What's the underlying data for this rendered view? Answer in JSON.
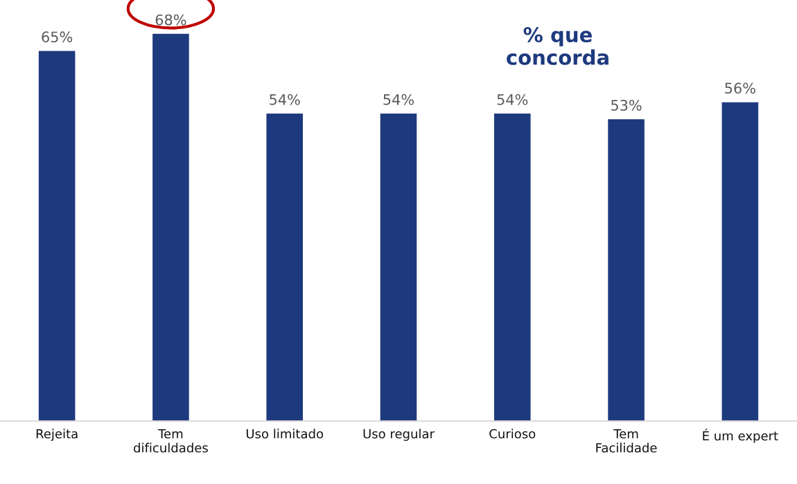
{
  "chart_data": {
    "type": "bar",
    "title": "% que\nconcorda",
    "categories": [
      "Rejeita",
      "Tem\ndificuldades",
      "Uso limitado",
      "Uso regular",
      "Curioso",
      "Tem\nFacilidade",
      "É um expert"
    ],
    "values": [
      65,
      68,
      54,
      54,
      54,
      53,
      56
    ],
    "color": "#1e3a7e",
    "value_labels": [
      "65%",
      "68%",
      "54%",
      "54%",
      "54%",
      "53%",
      "56%"
    ],
    "grid": false,
    "legend": false
  }
}
